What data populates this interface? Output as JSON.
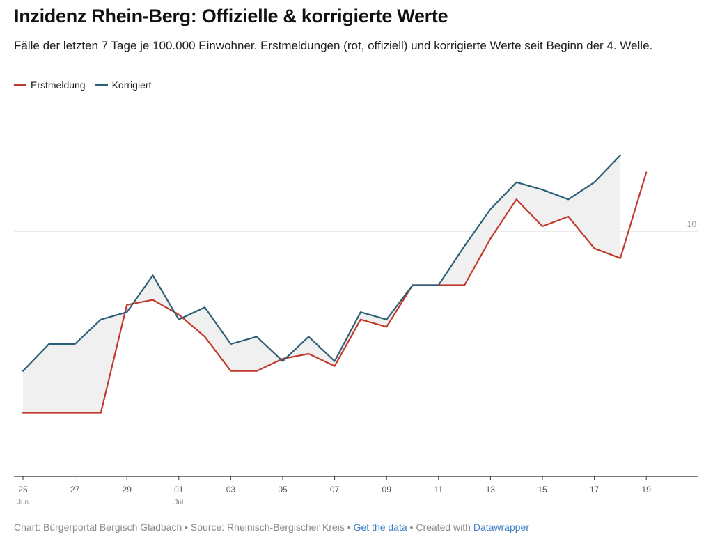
{
  "title": "Inzidenz Rhein-Berg: Offizielle & korrigierte Werte",
  "subtitle": "Fälle der letzten 7 Tage je 100.000 Einwohner. Erstmeldungen (rot, offiziell) und korrigierte Werte seit Beginn der 4. Welle.",
  "footer": {
    "chart_by": "Chart: Bürgerportal Bergisch Gladbach",
    "source": "Source: Rheinisch-Bergischer Kreis",
    "separator": " • ",
    "get_data": "Get the data",
    "created_with": "Created with",
    "datawrapper": "Datawrapper"
  },
  "chart_data": {
    "type": "line",
    "x_unit": "2021 date",
    "x": [
      "2021-06-25",
      "2021-06-26",
      "2021-06-27",
      "2021-06-28",
      "2021-06-29",
      "2021-06-30",
      "2021-07-01",
      "2021-07-02",
      "2021-07-03",
      "2021-07-04",
      "2021-07-05",
      "2021-07-06",
      "2021-07-07",
      "2021-07-08",
      "2021-07-09",
      "2021-07-10",
      "2021-07-11",
      "2021-07-12",
      "2021-07-13",
      "2021-07-14",
      "2021-07-15",
      "2021-07-16",
      "2021-07-17",
      "2021-07-18",
      "2021-07-19"
    ],
    "series": [
      {
        "name": "Erstmeldung",
        "color": "#c0392b",
        "values": [
          2.6,
          2.6,
          2.6,
          2.6,
          7.0,
          7.2,
          6.6,
          5.7,
          4.3,
          4.3,
          4.8,
          5.0,
          4.5,
          6.4,
          6.1,
          7.8,
          7.8,
          7.8,
          9.7,
          11.3,
          10.2,
          10.6,
          9.3,
          8.9,
          12.4
        ]
      },
      {
        "name": "Korrigiert",
        "color": "#2e5f78",
        "values": [
          4.3,
          5.4,
          5.4,
          6.4,
          6.7,
          8.2,
          6.4,
          6.9,
          5.4,
          5.7,
          4.7,
          5.7,
          4.7,
          6.7,
          6.4,
          7.8,
          7.8,
          9.4,
          10.9,
          12.0,
          11.7,
          11.3,
          12.0,
          13.1,
          null
        ]
      }
    ],
    "fill_between": true,
    "ylim": [
      0,
      15.6
    ],
    "y_ticks": [
      {
        "value": 10,
        "label": "10"
      }
    ],
    "x_ticks": [
      {
        "x": "2021-06-25",
        "label": "25",
        "sublabel": "Jun"
      },
      {
        "x": "2021-06-27",
        "label": "27"
      },
      {
        "x": "2021-06-29",
        "label": "29"
      },
      {
        "x": "2021-07-01",
        "label": "01",
        "sublabel": "Jul"
      },
      {
        "x": "2021-07-03",
        "label": "03"
      },
      {
        "x": "2021-07-05",
        "label": "05"
      },
      {
        "x": "2021-07-07",
        "label": "07"
      },
      {
        "x": "2021-07-09",
        "label": "09"
      },
      {
        "x": "2021-07-11",
        "label": "11"
      },
      {
        "x": "2021-07-13",
        "label": "13"
      },
      {
        "x": "2021-07-15",
        "label": "15"
      },
      {
        "x": "2021-07-17",
        "label": "17"
      },
      {
        "x": "2021-07-19",
        "label": "19"
      }
    ],
    "grid": true,
    "legend_position": "top-left",
    "area_color": "#f0f0f0"
  }
}
